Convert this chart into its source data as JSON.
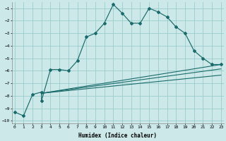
{
  "bg_color": "#cce8e8",
  "grid_color": "#99cccc",
  "line_color": "#1a6b6b",
  "xlabel": "Humidex (Indice chaleur)",
  "ylim": [
    -10.2,
    -0.5
  ],
  "xlim": [
    -0.3,
    23.3
  ],
  "yticks": [
    -10,
    -9,
    -8,
    -7,
    -6,
    -5,
    -4,
    -3,
    -2,
    -1
  ],
  "xticks": [
    0,
    1,
    2,
    3,
    4,
    5,
    6,
    7,
    8,
    9,
    10,
    11,
    12,
    13,
    14,
    15,
    16,
    17,
    18,
    19,
    20,
    21,
    22,
    23
  ],
  "curve1_x": [
    0,
    1,
    2,
    3,
    3,
    4,
    5,
    6,
    7,
    8,
    9,
    10,
    11,
    12,
    13,
    14,
    15,
    16,
    17,
    18,
    19,
    20,
    21,
    22,
    23
  ],
  "curve1_y": [
    -9.3,
    -9.6,
    -7.9,
    -7.7,
    -8.4,
    -5.9,
    -5.9,
    -6.0,
    -5.2,
    -3.3,
    -3.0,
    -2.2,
    -0.7,
    -1.4,
    -2.2,
    -2.2,
    -1.0,
    -1.3,
    -1.7,
    -2.5,
    -3.0,
    -4.4,
    -5.0,
    -5.5,
    -5.5
  ],
  "line2_x": [
    3,
    23
  ],
  "line2_y": [
    -7.8,
    -5.5
  ],
  "line3_x": [
    3,
    23
  ],
  "line3_y": [
    -7.8,
    -5.85
  ],
  "line4_x": [
    3,
    23
  ],
  "line4_y": [
    -7.8,
    -6.35
  ]
}
